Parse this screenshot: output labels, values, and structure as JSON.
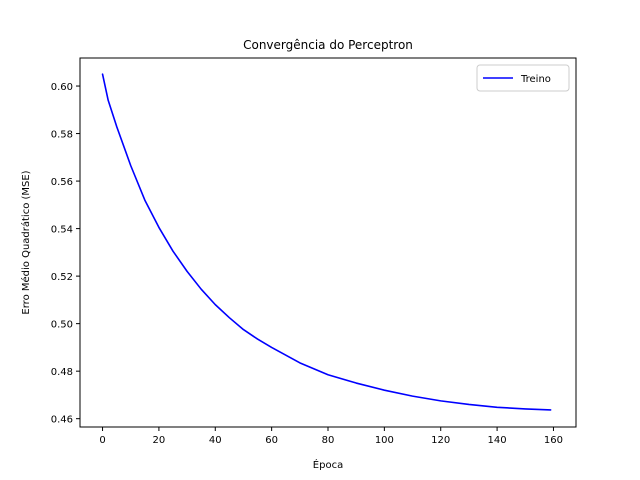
{
  "chart_data": {
    "type": "line",
    "title": "Convergência do Perceptron",
    "xlabel": "Época",
    "ylabel": "Erro Médio Quadrático (MSE)",
    "xlim": [
      -8,
      168
    ],
    "ylim": [
      0.4565,
      0.6118
    ],
    "xticks": [
      0,
      20,
      40,
      60,
      80,
      100,
      120,
      140,
      160
    ],
    "yticks": [
      0.46,
      0.48,
      0.5,
      0.52,
      0.54,
      0.56,
      0.58,
      0.6
    ],
    "ytick_labels": [
      "0.46",
      "0.48",
      "0.50",
      "0.52",
      "0.54",
      "0.56",
      "0.58",
      "0.60"
    ],
    "legend_position": "top-right",
    "series": [
      {
        "name": "Treino",
        "color": "#0000ff",
        "x": [
          0,
          2,
          5,
          10,
          15,
          20,
          25,
          30,
          35,
          40,
          45,
          50,
          55,
          60,
          70,
          80,
          90,
          100,
          110,
          120,
          130,
          140,
          150,
          159
        ],
        "y": [
          0.605,
          0.594,
          0.583,
          0.5665,
          0.552,
          0.5405,
          0.5305,
          0.522,
          0.5145,
          0.508,
          0.5025,
          0.4975,
          0.4935,
          0.49,
          0.4835,
          0.4785,
          0.475,
          0.472,
          0.4695,
          0.4675,
          0.466,
          0.4648,
          0.4641,
          0.4637
        ]
      }
    ]
  }
}
